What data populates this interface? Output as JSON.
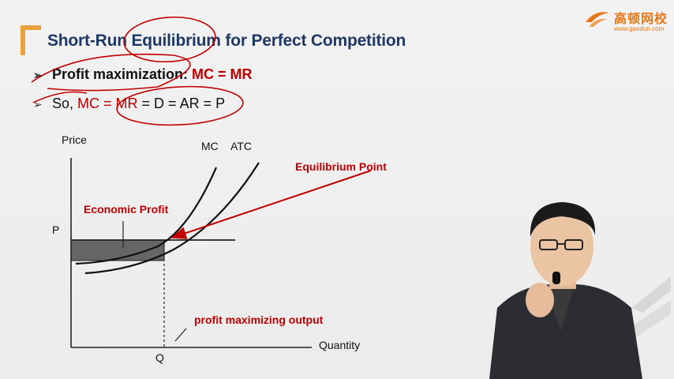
{
  "title": "Short-Run Equilibrium for Perfect Competition",
  "bullets": [
    {
      "arrow": "➢",
      "text": "Profit maximization: ",
      "highlight": "MC = MR"
    },
    {
      "arrow": "➢",
      "text_prefix": "So, ",
      "highlight": "MC = MR",
      "text_suffix": " = D = AR = P"
    }
  ],
  "logo": {
    "name": "高顿网校",
    "url": "www.gaodun.com"
  },
  "diagram": {
    "y_axis_label": "Price",
    "x_axis_label": "Quantity",
    "price_label": "P",
    "quantity_label": "Q",
    "mc_label": "MC",
    "atc_label": "ATC",
    "equilibrium_label": "Equilibrium Point",
    "profit_label": "Economic Profit",
    "output_label": "profit maximizing output"
  },
  "colors": {
    "title": "#1f3864",
    "accent": "#c00000",
    "bracket": "#e8a33d",
    "logo": "#e67817"
  }
}
